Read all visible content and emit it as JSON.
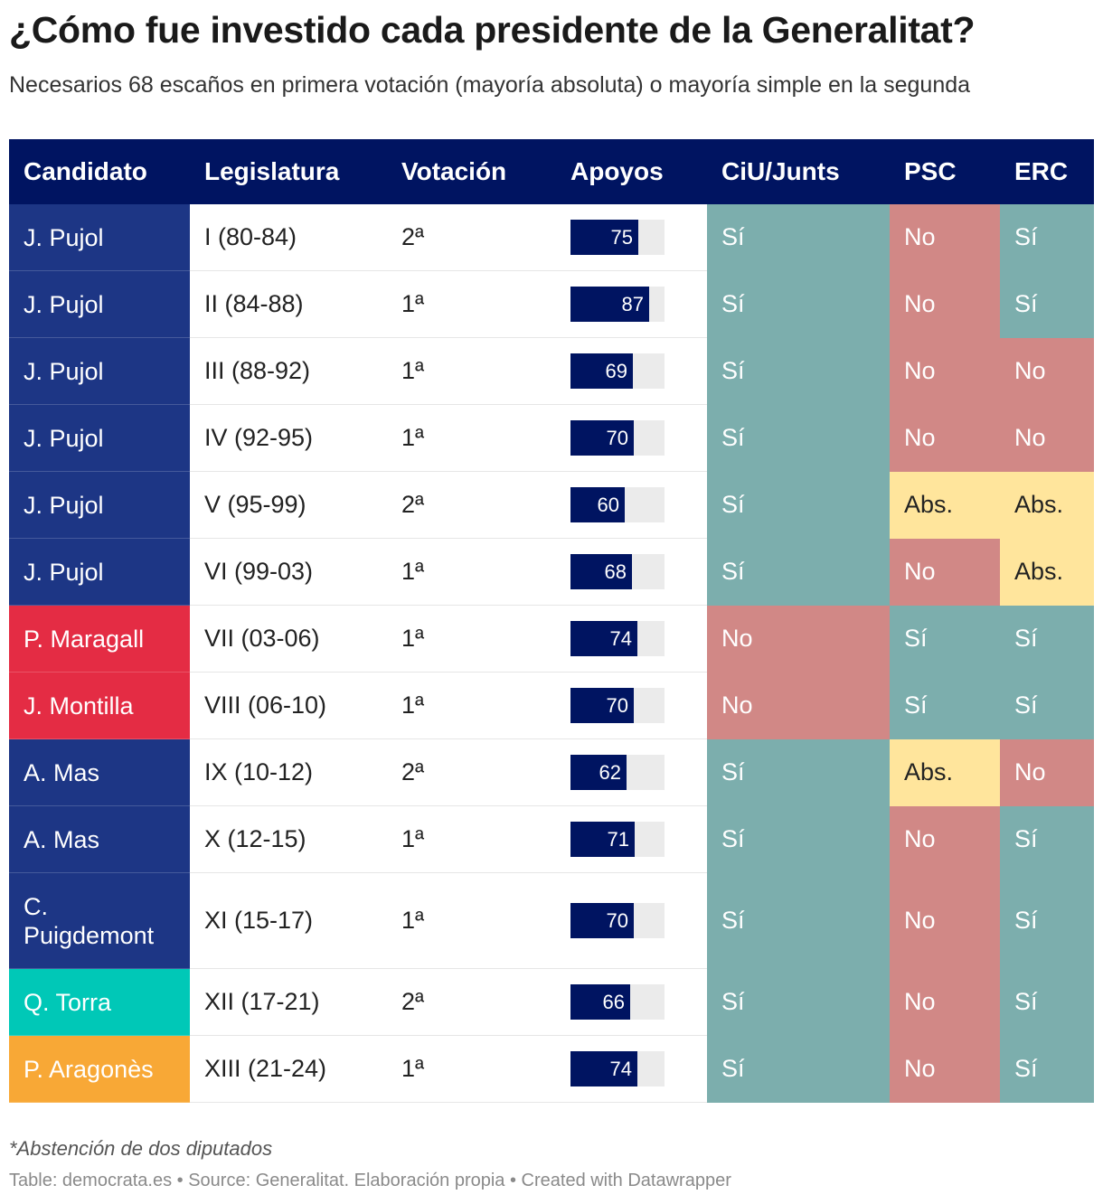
{
  "title": "¿Cómo fue investido cada presidente de la Generalitat?",
  "subtitle": "Necesarios 68 escaños en primera votación (mayoría absoluta) o mayoría simple en la segunda",
  "colors": {
    "header": "#001461",
    "bar": "#001461",
    "bar_track": "#ebebeb",
    "party_CiU": "#1d3685",
    "party_PSC": "#e42c44",
    "party_Junts": "#00c8b7",
    "party_ERC": "#f8a836",
    "vote_Si": "#7caead",
    "vote_No": "#d18886",
    "vote_Abs": "#ffe59c"
  },
  "chart_data": {
    "type": "table",
    "title": "¿Cómo fue investido cada presidente de la Generalitat?",
    "bar_max": 104,
    "columns": [
      "Candidato",
      "Legislatura",
      "Votación",
      "Apoyos",
      "CiU/Junts",
      "PSC",
      "ERC"
    ],
    "rows": [
      {
        "candidato": "J. Pujol",
        "party": "CiU",
        "legislatura": "I (80-84)",
        "votacion": "2ª",
        "apoyos": 75,
        "ciu": "Sí",
        "psc": "No",
        "erc": "Sí"
      },
      {
        "candidato": "J. Pujol",
        "party": "CiU",
        "legislatura": "II (84-88)",
        "votacion": "1ª",
        "apoyos": 87,
        "ciu": "Sí",
        "psc": "No",
        "erc": "Sí"
      },
      {
        "candidato": "J. Pujol",
        "party": "CiU",
        "legislatura": "III (88-92)",
        "votacion": "1ª",
        "apoyos": 69,
        "ciu": "Sí",
        "psc": "No",
        "erc": "No"
      },
      {
        "candidato": "J. Pujol",
        "party": "CiU",
        "legislatura": "IV (92-95)",
        "votacion": "1ª",
        "apoyos": 70,
        "ciu": "Sí",
        "psc": "No",
        "erc": "No"
      },
      {
        "candidato": "J. Pujol",
        "party": "CiU",
        "legislatura": "V (95-99)",
        "votacion": "2ª",
        "apoyos": 60,
        "ciu": "Sí",
        "psc": "Abs.",
        "erc": "Abs."
      },
      {
        "candidato": "J. Pujol",
        "party": "CiU",
        "legislatura": "VI (99-03)",
        "votacion": "1ª",
        "apoyos": 68,
        "ciu": "Sí",
        "psc": "No",
        "erc": "Abs."
      },
      {
        "candidato": "P. Maragall",
        "party": "PSC",
        "legislatura": "VII (03-06)",
        "votacion": "1ª",
        "apoyos": 74,
        "ciu": "No",
        "psc": "Sí",
        "erc": "Sí"
      },
      {
        "candidato": "J. Montilla",
        "party": "PSC",
        "legislatura": "VIII (06-10)",
        "votacion": "1ª",
        "apoyos": 70,
        "ciu": "No",
        "psc": "Sí",
        "erc": "Sí"
      },
      {
        "candidato": "A. Mas",
        "party": "CiU",
        "legislatura": "IX (10-12)",
        "votacion": "2ª",
        "apoyos": 62,
        "ciu": "Sí",
        "psc": "Abs.",
        "erc": "No"
      },
      {
        "candidato": "A. Mas",
        "party": "CiU",
        "legislatura": "X (12-15)",
        "votacion": "1ª",
        "apoyos": 71,
        "ciu": "Sí",
        "psc": "No",
        "erc": "Sí"
      },
      {
        "candidato": "C. Puigdemont",
        "party": "CiU",
        "legislatura": "XI (15-17)",
        "votacion": "1ª",
        "apoyos": 70,
        "ciu": "Sí",
        "psc": "No",
        "erc": "Sí"
      },
      {
        "candidato": "Q. Torra",
        "party": "Junts",
        "legislatura": "XII (17-21)",
        "votacion": "2ª",
        "apoyos": 66,
        "ciu": "Sí",
        "psc": "No",
        "erc": "Sí"
      },
      {
        "candidato": "P. Aragonès",
        "party": "ERC",
        "legislatura": "XIII (21-24)",
        "votacion": "1ª",
        "apoyos": 74,
        "ciu": "Sí",
        "psc": "No",
        "erc": "Sí"
      }
    ]
  },
  "footer": {
    "note": "*Abstención de dos diputados",
    "source": "Table: democrata.es • Source: Generalitat. Elaboración propia • Created with Datawrapper"
  }
}
